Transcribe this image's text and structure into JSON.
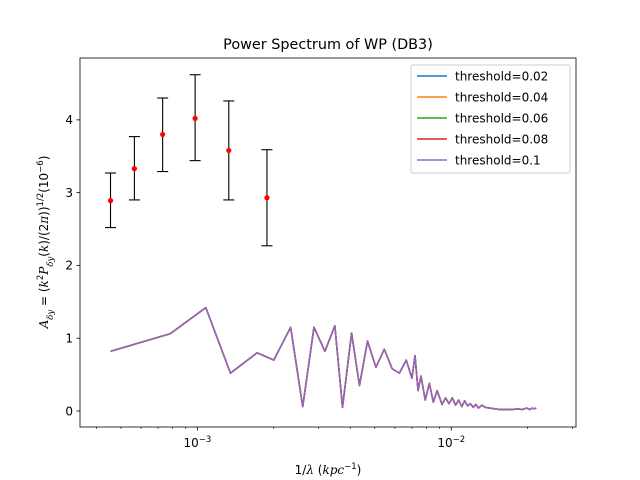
{
  "chart_data": {
    "type": "line",
    "title": "Power Spectrum of WP (DB3)",
    "xlabel": "1/λ (kpc⁻¹)",
    "ylabel": "Aδy = (k²Pδy(k)/(2π))¹ᐟ²(10⁻⁶)",
    "xscale": "log",
    "xlim": [
      0.000345,
      0.031
    ],
    "ylim": [
      -0.22,
      4.85
    ],
    "x_ticks": [
      {
        "value": 0.001,
        "base": "10",
        "exp": "−3"
      },
      {
        "value": 0.01,
        "base": "10",
        "exp": "−2"
      }
    ],
    "y_ticks": [
      {
        "value": 0,
        "label": "0"
      },
      {
        "value": 1,
        "label": "1"
      },
      {
        "value": 2,
        "label": "2"
      },
      {
        "value": 3,
        "label": "3"
      },
      {
        "value": 4,
        "label": "4"
      }
    ],
    "legend_position": "top-right",
    "series": [
      {
        "name": "threshold=0.02",
        "color": "#1f77b4"
      },
      {
        "name": "threshold=0.04",
        "color": "#ff7f0e"
      },
      {
        "name": "threshold=0.06",
        "color": "#2ca02c"
      },
      {
        "name": "threshold=0.08",
        "color": "#d62728"
      },
      {
        "name": "threshold=0.1",
        "color": "#9467bd"
      }
    ],
    "spectrum": {
      "x": [
        0.000455,
        0.00078,
        0.00108,
        0.00135,
        0.00172,
        0.002,
        0.00233,
        0.0026,
        0.00288,
        0.00318,
        0.00348,
        0.00373,
        0.00405,
        0.00435,
        0.00468,
        0.00505,
        0.00545,
        0.00585,
        0.00625,
        0.00665,
        0.007,
        0.0072,
        0.0074,
        0.0076,
        0.0079,
        0.0082,
        0.0085,
        0.0088,
        0.0092,
        0.0095,
        0.0098,
        0.0101,
        0.0104,
        0.0107,
        0.011,
        0.0113,
        0.0116,
        0.0119,
        0.0122,
        0.0125,
        0.0128,
        0.0132,
        0.0136,
        0.0142,
        0.0148,
        0.0155,
        0.016,
        0.0168,
        0.0175,
        0.0182,
        0.019,
        0.0198,
        0.0204,
        0.0208,
        0.0212,
        0.0216
      ],
      "y": [
        0.82,
        1.06,
        1.42,
        0.52,
        0.8,
        0.7,
        1.15,
        0.06,
        1.15,
        0.82,
        1.17,
        0.05,
        1.07,
        0.35,
        0.96,
        0.6,
        0.85,
        0.58,
        0.52,
        0.7,
        0.45,
        0.76,
        0.28,
        0.48,
        0.15,
        0.38,
        0.12,
        0.28,
        0.09,
        0.18,
        0.1,
        0.18,
        0.08,
        0.15,
        0.06,
        0.14,
        0.07,
        0.1,
        0.05,
        0.09,
        0.04,
        0.08,
        0.05,
        0.04,
        0.03,
        0.02,
        0.02,
        0.02,
        0.02,
        0.03,
        0.02,
        0.04,
        0.02,
        0.04,
        0.03,
        0.04
      ]
    },
    "errorbars": {
      "color": "#ff0000",
      "points": [
        {
          "x": 0.000455,
          "y": 2.89,
          "ylo": 2.52,
          "yhi": 3.27
        },
        {
          "x": 0.000565,
          "y": 3.33,
          "ylo": 2.9,
          "yhi": 3.77
        },
        {
          "x": 0.00073,
          "y": 3.8,
          "ylo": 3.29,
          "yhi": 4.3
        },
        {
          "x": 0.00098,
          "y": 4.02,
          "ylo": 3.44,
          "yhi": 4.62
        },
        {
          "x": 0.00133,
          "y": 3.58,
          "ylo": 2.9,
          "yhi": 4.26
        },
        {
          "x": 0.00188,
          "y": 2.93,
          "ylo": 2.27,
          "yhi": 3.59
        }
      ]
    }
  }
}
